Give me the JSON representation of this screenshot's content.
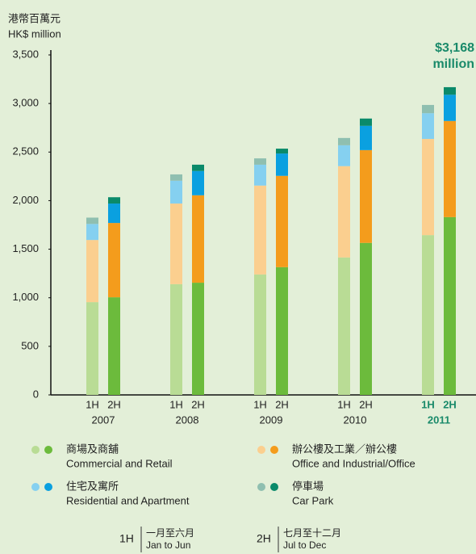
{
  "chart_data": {
    "type": "stacked-pair-bar",
    "y_label": [
      "港幣百萬元",
      "HK$ million"
    ],
    "annotation": [
      "$3,168",
      "million"
    ],
    "annotation_color": "#1a8a6a",
    "highlight_category": 4,
    "categories": [
      "2007",
      "2008",
      "2009",
      "2010",
      "2011"
    ],
    "halves": [
      "1H",
      "2H"
    ],
    "series": [
      {
        "name": "商場及商舖",
        "name_en": "Commercial and Retail",
        "colors": [
          "#b9dc95",
          "#6cbb3c"
        ],
        "values": [
          [
            955,
            1005
          ],
          [
            1140,
            1155
          ],
          [
            1240,
            1315
          ],
          [
            1415,
            1565
          ],
          [
            1645,
            1830
          ]
        ]
      },
      {
        "name": "辦公樓及工業／辦公樓",
        "name_en": "Office and Industrial/Office",
        "colors": [
          "#fbcf8f",
          "#f49c1c"
        ],
        "values": [
          [
            640,
            765
          ],
          [
            830,
            900
          ],
          [
            915,
            940
          ],
          [
            940,
            955
          ],
          [
            990,
            990
          ]
        ]
      },
      {
        "name": "住宅及寓所",
        "name_en": "Residential and Apartment",
        "colors": [
          "#85d0f0",
          "#0aa0e0"
        ],
        "values": [
          [
            165,
            200
          ],
          [
            235,
            250
          ],
          [
            215,
            230
          ],
          [
            215,
            250
          ],
          [
            265,
            270
          ]
        ]
      },
      {
        "name": "停車場",
        "name_en": "Car Park",
        "colors": [
          "#8fbfb0",
          "#0a8a6a"
        ],
        "values": [
          [
            65,
            65
          ],
          [
            65,
            65
          ],
          [
            65,
            50
          ],
          [
            75,
            75
          ],
          [
            85,
            78
          ]
        ]
      }
    ],
    "ylim": [
      0,
      3500
    ],
    "yticks": [
      0,
      500,
      {
        "value": 1000,
        "label": "1,000"
      },
      {
        "value": 1500,
        "label": "1,500"
      },
      {
        "value": 2000,
        "label": "2,000"
      },
      {
        "value": 2500,
        "label": "2,500"
      },
      {
        "value": 3000,
        "label": "3,000"
      },
      {
        "value": 3500,
        "label": "3,500"
      }
    ],
    "footnote": [
      {
        "label": "1H",
        "zh": "一月至六月",
        "en": "Jan to Jun"
      },
      {
        "label": "2H",
        "zh": "七月至十二月",
        "en": "Jul to Dec"
      }
    ]
  }
}
